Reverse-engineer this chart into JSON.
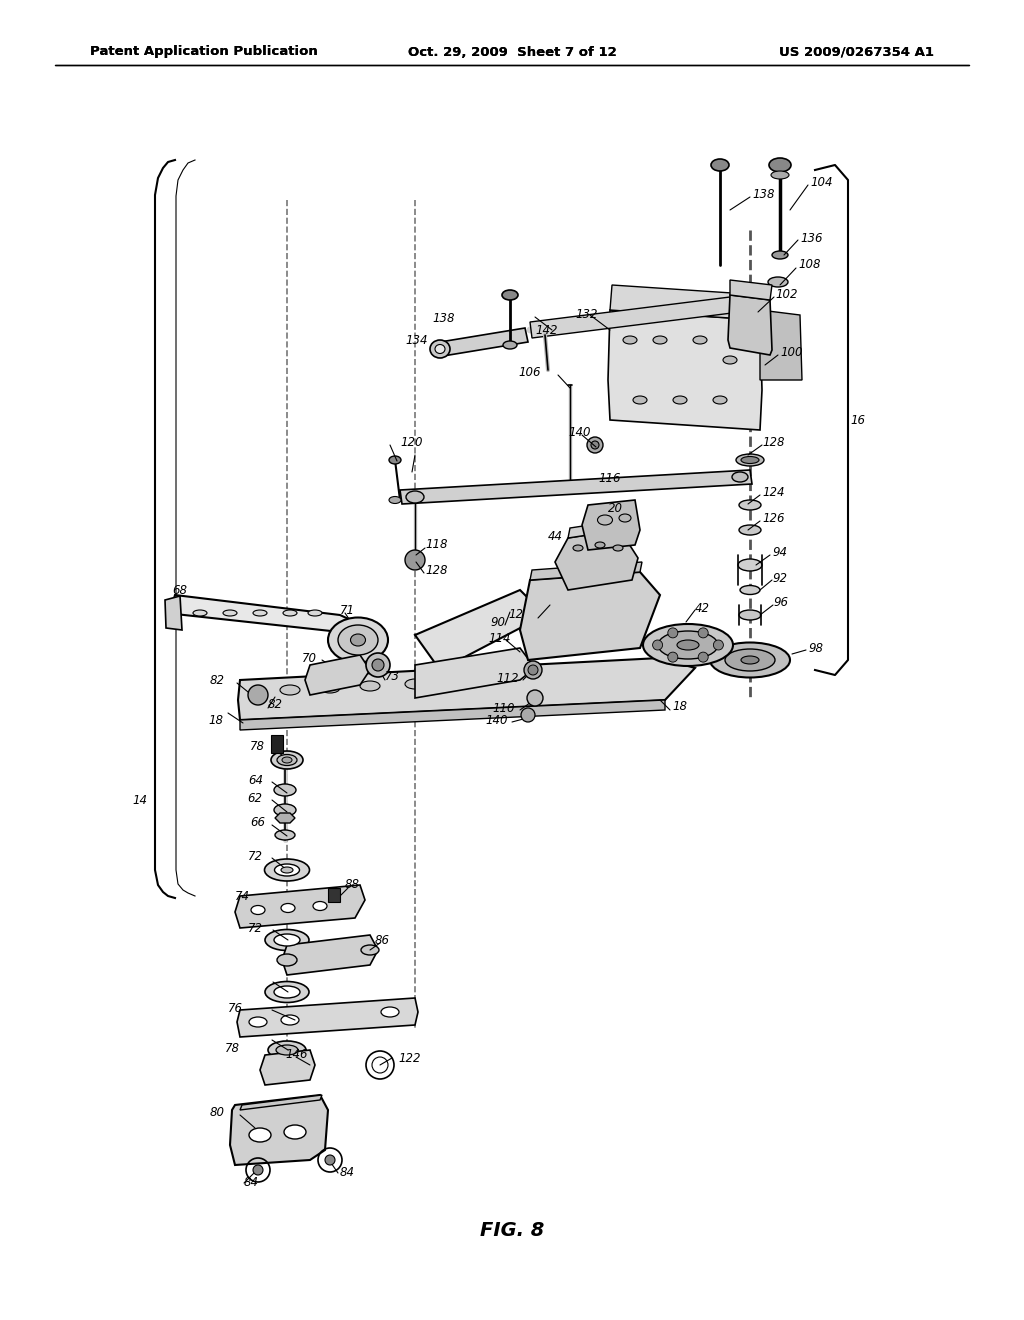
{
  "title_left": "Patent Application Publication",
  "title_center": "Oct. 29, 2009  Sheet 7 of 12",
  "title_right": "US 2009/0267354 A1",
  "fig_label": "FIG. 8",
  "bg_color": "#ffffff",
  "line_color": "#000000",
  "text_color": "#000000",
  "header_fontsize": 9.5,
  "fig_label_fontsize": 14,
  "label_fontsize": 8.5
}
